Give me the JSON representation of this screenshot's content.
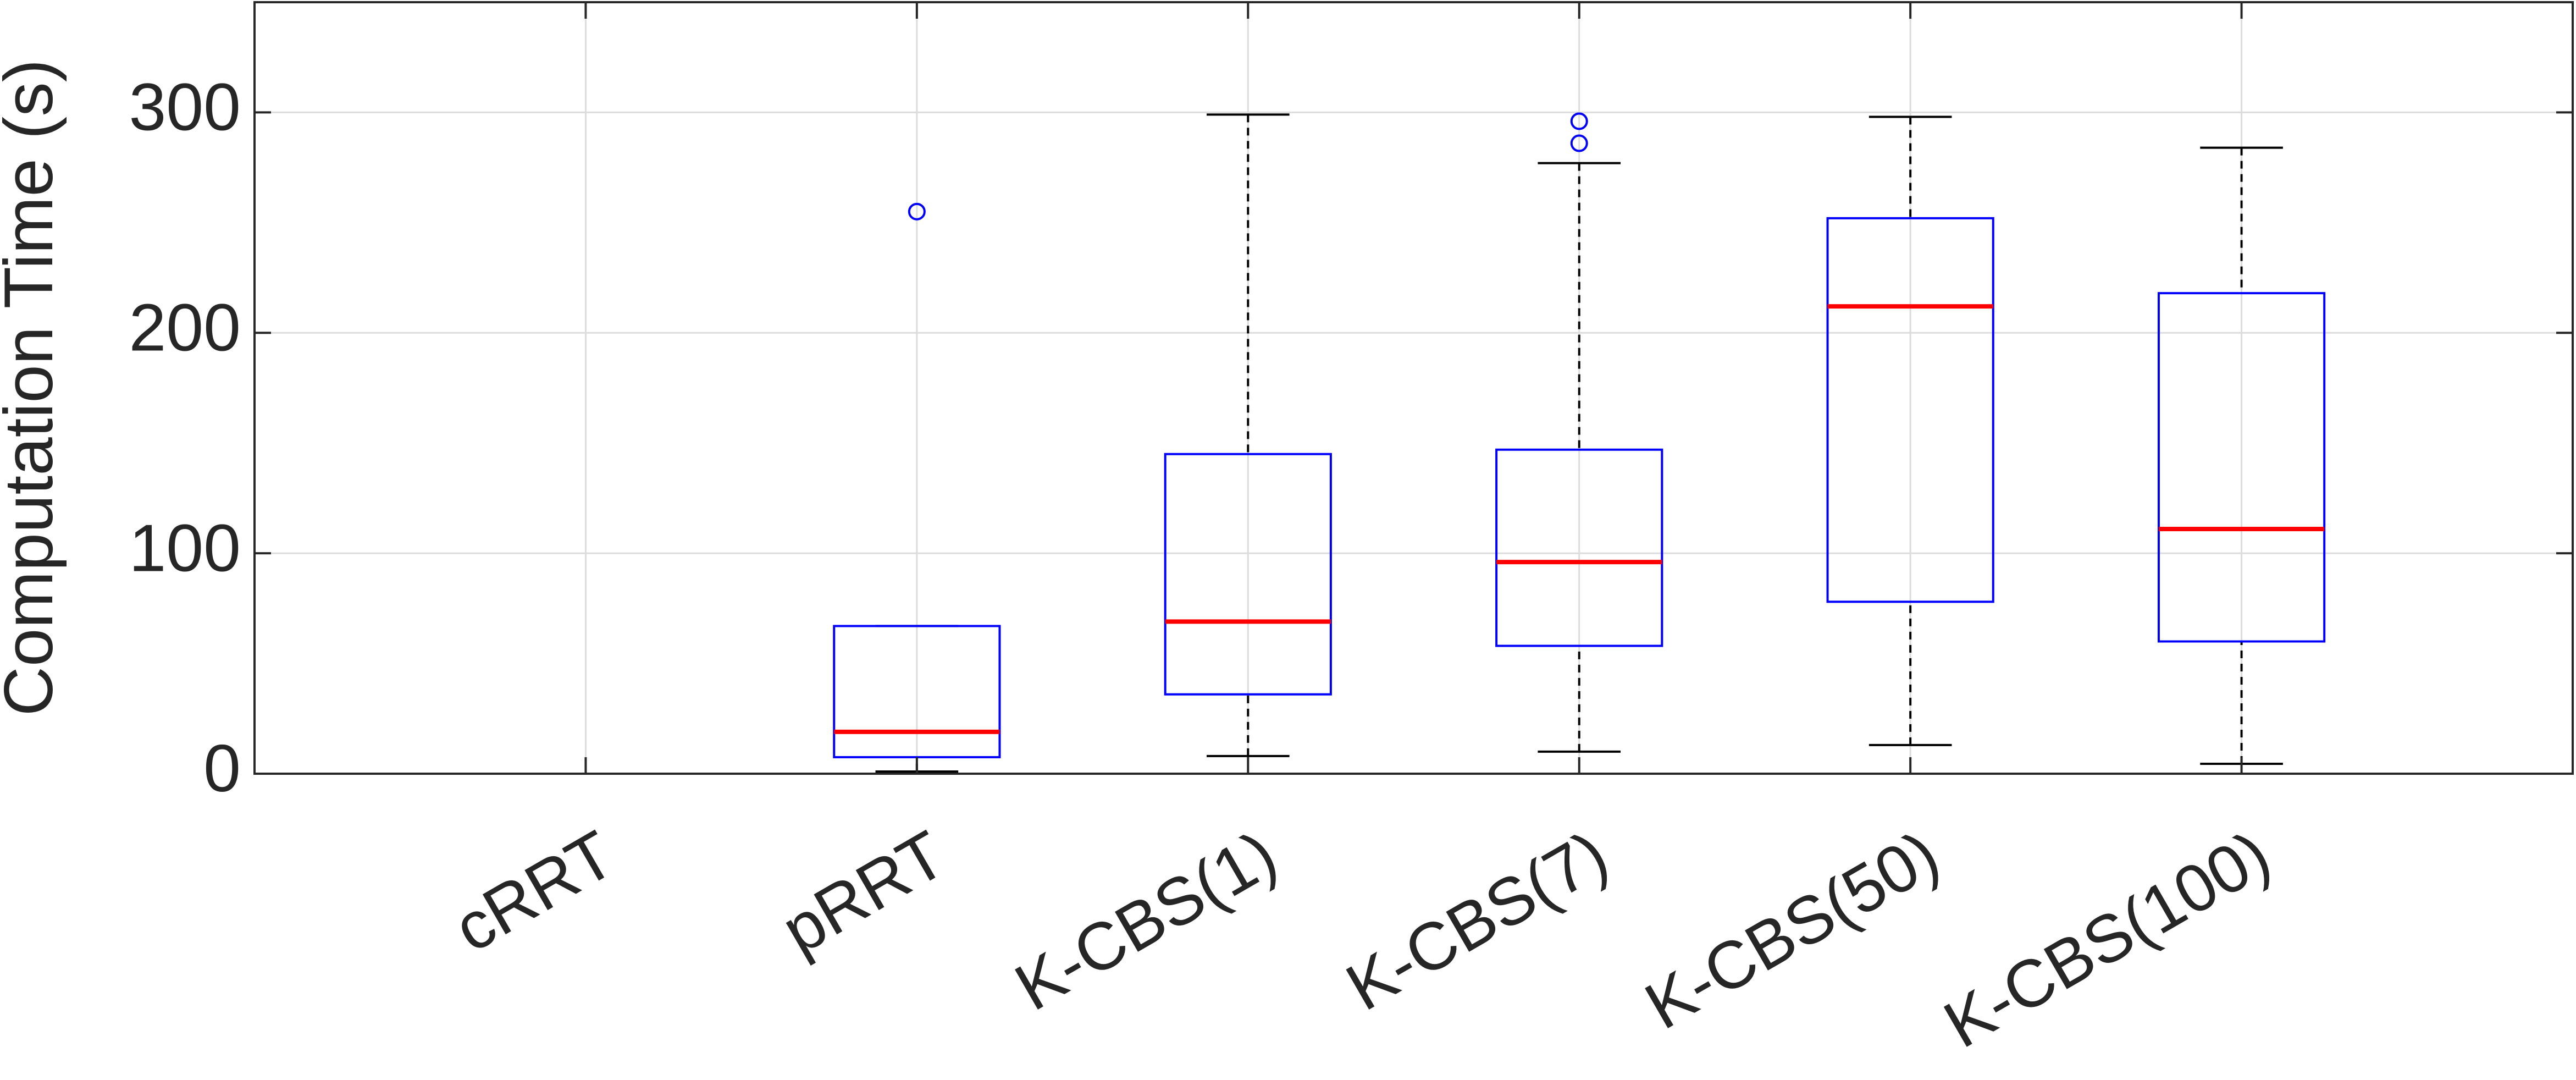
{
  "chart_data": {
    "type": "box",
    "y_label": "Computation Time (s)",
    "categories": [
      "cRRT",
      "pRRT",
      "K-CBS(1)",
      "K-CBS(7)",
      "K-CBS(50)",
      "K-CBS(100)"
    ],
    "whisker_low": [
      null,
      1,
      8,
      10,
      13,
      4.5
    ],
    "q1": [
      null,
      7.5,
      36,
      58,
      78,
      60
    ],
    "median": [
      null,
      19,
      69,
      96,
      212,
      111
    ],
    "q3": [
      null,
      67,
      145,
      147,
      252,
      218
    ],
    "whisker_high": [
      null,
      67,
      299,
      277,
      298,
      284
    ],
    "outliers": [
      [],
      [
        255
      ],
      [],
      [
        286,
        296
      ],
      [],
      []
    ],
    "box_color": "#0000ff",
    "median_color": "#ff0000",
    "whisker_color": "#000000",
    "ylim": [
      0,
      350
    ],
    "yticks": [
      0,
      100,
      200,
      300
    ],
    "grid": true
  }
}
